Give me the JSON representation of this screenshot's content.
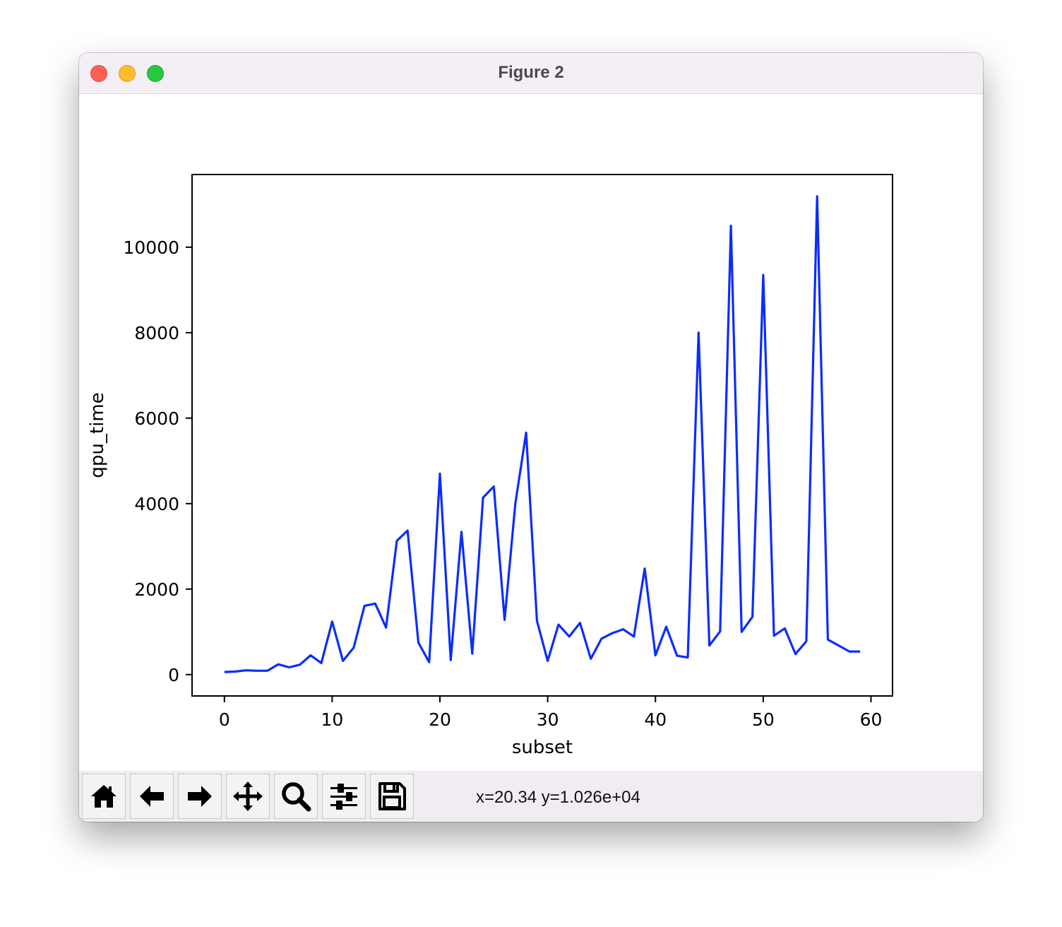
{
  "window": {
    "title": "Figure 2"
  },
  "toolbar": {
    "buttons": [
      {
        "name": "home-button",
        "icon": "home-icon"
      },
      {
        "name": "back-button",
        "icon": "arrow-left-icon"
      },
      {
        "name": "forward-button",
        "icon": "arrow-right-icon"
      },
      {
        "name": "pan-button",
        "icon": "move-icon"
      },
      {
        "name": "zoom-button",
        "icon": "search-icon"
      },
      {
        "name": "configure-subplots-button",
        "icon": "sliders-icon"
      },
      {
        "name": "save-button",
        "icon": "save-icon"
      }
    ],
    "coords": "x=20.34 y=1.026e+04"
  },
  "chart_data": {
    "type": "line",
    "title": "",
    "xlabel": "subset",
    "ylabel": "qpu_time",
    "xlim": [
      -3,
      62
    ],
    "ylim": [
      -500,
      11700
    ],
    "xticks": [
      0,
      10,
      20,
      30,
      40,
      50,
      60
    ],
    "yticks": [
      0,
      2000,
      4000,
      6000,
      8000,
      10000
    ],
    "grid": false,
    "color": "#0a2cff",
    "series": [
      {
        "x": [
          0,
          1,
          2,
          3,
          4,
          5,
          6,
          7,
          8,
          9,
          10,
          11,
          12,
          13,
          14,
          15,
          16,
          17,
          18,
          19,
          20,
          21,
          22,
          23,
          24,
          25,
          26,
          27,
          28,
          29,
          30,
          31,
          32,
          33,
          34,
          35,
          36,
          37,
          38,
          39,
          40,
          41,
          42,
          43,
          44,
          45,
          46,
          47,
          48,
          49,
          50,
          51,
          52,
          53,
          54,
          55,
          56,
          57,
          58,
          59
        ],
        "values": [
          60,
          70,
          100,
          90,
          90,
          240,
          170,
          230,
          450,
          270,
          1240,
          320,
          630,
          1610,
          1660,
          1100,
          3130,
          3370,
          750,
          290,
          4700,
          340,
          3340,
          490,
          4140,
          4400,
          1280,
          4000,
          5660,
          1260,
          320,
          1170,
          890,
          1210,
          370,
          840,
          970,
          1060,
          890,
          2480,
          450,
          1120,
          440,
          400,
          8000,
          680,
          1010,
          10500,
          1000,
          1350,
          9350,
          910,
          1080,
          480,
          780,
          11190,
          820,
          680,
          540,
          540
        ]
      }
    ]
  }
}
